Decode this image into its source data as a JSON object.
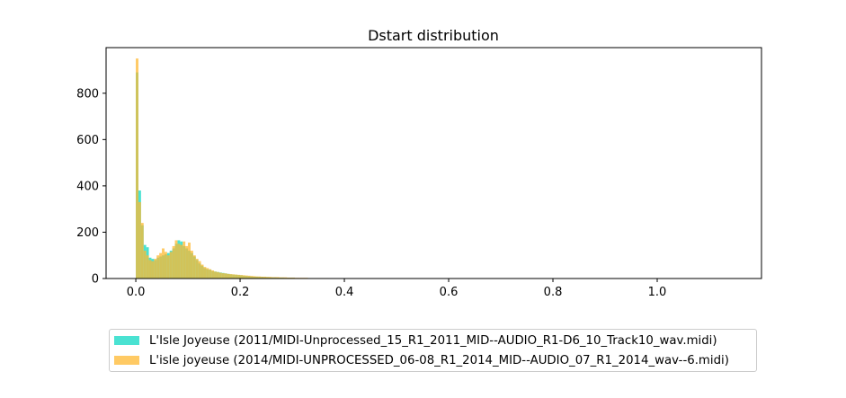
{
  "chart_data": {
    "type": "histogram",
    "title": "Dstart distribution",
    "xlabel": "",
    "ylabel": "",
    "xlim": [
      -0.057,
      1.2
    ],
    "ylim": [
      0,
      997
    ],
    "x_ticks": [
      0.0,
      0.2,
      0.4,
      0.6,
      0.8,
      1.0
    ],
    "x_tick_labels": [
      "0.0",
      "0.2",
      "0.4",
      "0.6",
      "0.8",
      "1.0"
    ],
    "y_ticks": [
      0,
      200,
      400,
      600,
      800
    ],
    "y_tick_labels": [
      "0",
      "200",
      "400",
      "600",
      "800"
    ],
    "bin_width": 0.005,
    "series": [
      {
        "name": "L'Isle Joyeuse (2011/MIDI-Unprocessed_15_R1_2011_MID--AUDIO_R1-D6_10_Track10_wav.midi)",
        "color": "#40E0D0",
        "opacity": 0.95,
        "bin_start": 0.0,
        "values": [
          890,
          380,
          230,
          145,
          135,
          90,
          85,
          80,
          90,
          95,
          100,
          105,
          110,
          120,
          130,
          150,
          165,
          160,
          140,
          130,
          120,
          110,
          95,
          80,
          65,
          55,
          45,
          40,
          38,
          32,
          30,
          28,
          26,
          24,
          22,
          20,
          18,
          17,
          16,
          15,
          14,
          12,
          11,
          10,
          9,
          8,
          8,
          7,
          7,
          6,
          6,
          5,
          5,
          5,
          4,
          4,
          4,
          3,
          3,
          3,
          3,
          2,
          2,
          2,
          2,
          2,
          2,
          1,
          1,
          1,
          1,
          1,
          1,
          1,
          1,
          1,
          1,
          1,
          1,
          1,
          1,
          1,
          1,
          1,
          1
        ]
      },
      {
        "name": "L'isle joyeuse (2014/MIDI-UNPROCESSED_06-08_R1_2014_MID--AUDIO_07_R1_2014_wav--6.midi)",
        "color": "#FFB830",
        "opacity": 0.75,
        "bin_start": 0.0,
        "values": [
          950,
          330,
          240,
          120,
          100,
          80,
          75,
          85,
          100,
          110,
          130,
          115,
          100,
          115,
          140,
          165,
          150,
          145,
          160,
          140,
          155,
          120,
          100,
          85,
          75,
          60,
          50,
          45,
          40,
          35,
          30,
          28,
          25,
          23,
          22,
          20,
          19,
          18,
          17,
          16,
          15,
          14,
          13,
          12,
          11,
          10,
          9,
          9,
          8,
          8,
          7,
          7,
          6,
          6,
          6,
          5,
          5,
          5,
          4,
          4,
          4,
          3,
          3,
          3,
          3,
          3,
          2,
          2,
          2,
          2,
          2,
          2,
          2,
          2,
          1,
          1,
          1,
          1,
          1,
          1,
          1,
          1,
          1,
          1,
          1,
          1,
          1,
          1,
          1,
          1,
          1,
          1
        ]
      }
    ],
    "legend_position": "below"
  }
}
